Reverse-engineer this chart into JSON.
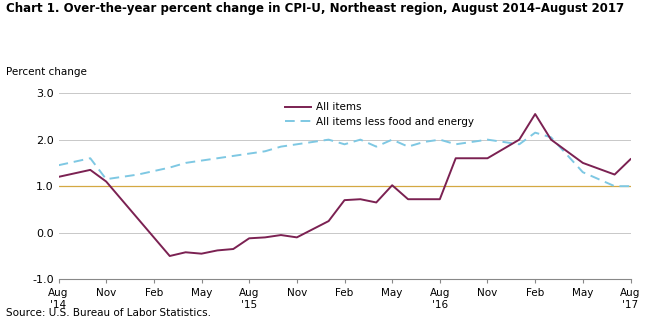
{
  "title": "Chart 1. Over-the-year percent change in CPI-U, Northeast region, August 2014–August 2017",
  "ylabel": "Percent change",
  "source": "Source: U.S. Bureau of Labor Statistics.",
  "ylim": [
    -1.0,
    3.0
  ],
  "yticks": [
    -1.0,
    0.0,
    1.0,
    2.0,
    3.0
  ],
  "x_tick_labels": [
    "Aug\n'14",
    "Nov",
    "Feb",
    "May",
    "Aug\n'15",
    "Nov",
    "Feb",
    "May",
    "Aug\n'16",
    "Nov",
    "Feb",
    "May",
    "Aug\n'17"
  ],
  "x_tick_positions": [
    0,
    3,
    6,
    9,
    12,
    15,
    18,
    21,
    24,
    27,
    30,
    33,
    36
  ],
  "all_items_x": [
    0,
    2,
    3,
    5,
    7,
    8,
    9,
    10,
    11,
    12,
    13,
    14,
    15,
    17,
    18,
    19,
    20,
    21,
    22,
    23,
    24,
    25,
    27,
    29,
    30,
    31,
    33,
    35,
    36
  ],
  "all_items_y": [
    1.2,
    1.35,
    1.1,
    0.3,
    -0.5,
    -0.42,
    -0.45,
    -0.38,
    -0.35,
    -0.12,
    -0.1,
    -0.05,
    -0.1,
    0.25,
    0.7,
    0.72,
    0.65,
    1.02,
    0.72,
    0.72,
    0.72,
    1.6,
    1.6,
    2.0,
    2.55,
    2.0,
    1.5,
    1.25,
    1.58
  ],
  "all_less_x": [
    0,
    2,
    3,
    5,
    7,
    8,
    9,
    10,
    11,
    12,
    13,
    14,
    15,
    17,
    18,
    19,
    20,
    21,
    22,
    23,
    24,
    25,
    27,
    29,
    30,
    31,
    33,
    35,
    36
  ],
  "all_less_y": [
    1.45,
    1.6,
    1.15,
    1.25,
    1.4,
    1.5,
    1.55,
    1.6,
    1.65,
    1.7,
    1.75,
    1.85,
    1.9,
    2.0,
    1.9,
    2.0,
    1.85,
    2.0,
    1.85,
    1.95,
    2.0,
    1.9,
    2.0,
    1.9,
    2.15,
    2.05,
    1.3,
    1.0,
    1.0
  ],
  "color_all_items": "#7b2152",
  "color_all_items_less": "#7ec8e3",
  "hline_color": "#d4a843",
  "grid_color": "#c8c8c8",
  "bg_color": "#ffffff"
}
